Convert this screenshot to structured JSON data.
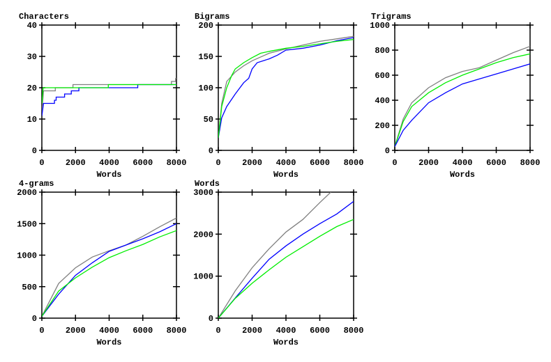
{
  "colors": {
    "gray": "#808080",
    "green": "#00ee00",
    "blue": "#0000ff"
  },
  "chart_data": [
    {
      "type": "line",
      "title": "Characters",
      "xlabel": "Words",
      "ylabel": "",
      "xlim": [
        0,
        8000
      ],
      "ylim": [
        0,
        40
      ],
      "xticks": [
        "0",
        "2000",
        "4000",
        "6000",
        "8000"
      ],
      "yticks": [
        "0",
        "10",
        "20",
        "30",
        "40"
      ],
      "grid": false,
      "series": [
        {
          "color": "gray",
          "x": [
            0,
            100,
            800,
            800,
            1850,
            1850,
            7700,
            7700,
            7950,
            7950,
            8000
          ],
          "y": [
            12,
            19,
            19,
            20,
            20,
            21,
            21,
            22,
            22,
            23,
            23
          ]
        },
        {
          "color": "blue",
          "x": [
            0,
            100,
            750,
            750,
            850,
            850,
            1350,
            1350,
            1750,
            1750,
            2200,
            2200,
            5700,
            5700,
            8000
          ],
          "y": [
            11,
            15,
            15,
            16,
            16,
            17,
            17,
            18,
            18,
            19,
            19,
            20,
            20,
            21,
            21
          ]
        },
        {
          "color": "green",
          "x": [
            0,
            80,
            3950,
            3950,
            8000
          ],
          "y": [
            15,
            20,
            20,
            21,
            21
          ]
        }
      ]
    },
    {
      "type": "line",
      "title": "Bigrams",
      "xlabel": "Words",
      "ylabel": "",
      "xlim": [
        0,
        8000
      ],
      "ylim": [
        0,
        200
      ],
      "xticks": [
        "0",
        "2000",
        "4000",
        "6000",
        "8000"
      ],
      "yticks": [
        "0",
        "50",
        "100",
        "150",
        "200"
      ],
      "grid": false,
      "series": [
        {
          "color": "gray",
          "x": [
            0,
            200,
            500,
            1000,
            1500,
            2000,
            3000,
            4000,
            5000,
            6000,
            7000,
            8000
          ],
          "y": [
            20,
            75,
            110,
            125,
            135,
            143,
            155,
            162,
            168,
            174,
            178,
            182
          ]
        },
        {
          "color": "blue",
          "x": [
            0,
            200,
            500,
            1000,
            1500,
            1800,
            2000,
            2300,
            3000,
            3500,
            4000,
            5000,
            6000,
            7000,
            8000
          ],
          "y": [
            20,
            52,
            70,
            90,
            108,
            115,
            130,
            140,
            146,
            152,
            160,
            163,
            168,
            175,
            180
          ]
        },
        {
          "color": "green",
          "x": [
            0,
            200,
            500,
            800,
            1000,
            1500,
            2000,
            2500,
            3000,
            4000,
            5000,
            6000,
            7000,
            8000
          ],
          "y": [
            20,
            70,
            100,
            120,
            130,
            140,
            148,
            155,
            158,
            163,
            166,
            170,
            174,
            177
          ]
        }
      ]
    },
    {
      "type": "line",
      "title": "Trigrams",
      "xlabel": "Words",
      "ylabel": "",
      "xlim": [
        0,
        8000
      ],
      "ylim": [
        0,
        1000
      ],
      "xticks": [
        "0",
        "2000",
        "4000",
        "6000",
        "8000"
      ],
      "yticks": [
        "0",
        "200",
        "400",
        "600",
        "800",
        "1000"
      ],
      "grid": false,
      "series": [
        {
          "color": "gray",
          "x": [
            0,
            500,
            1000,
            2000,
            3000,
            4000,
            5000,
            6000,
            7000,
            8000
          ],
          "y": [
            30,
            250,
            380,
            500,
            580,
            630,
            660,
            720,
            780,
            830
          ]
        },
        {
          "color": "green",
          "x": [
            0,
            500,
            1000,
            2000,
            3000,
            4000,
            5000,
            6000,
            7000,
            8000
          ],
          "y": [
            30,
            230,
            350,
            460,
            540,
            600,
            650,
            700,
            740,
            770
          ]
        },
        {
          "color": "blue",
          "x": [
            0,
            500,
            1000,
            2000,
            3000,
            4000,
            5000,
            6000,
            7000,
            8000
          ],
          "y": [
            30,
            160,
            240,
            380,
            460,
            530,
            570,
            610,
            650,
            690
          ]
        }
      ]
    },
    {
      "type": "line",
      "title": "4-grams",
      "xlabel": "Words",
      "ylabel": "",
      "xlim": [
        0,
        8000
      ],
      "ylim": [
        0,
        2000
      ],
      "xticks": [
        "0",
        "2000",
        "4000",
        "6000",
        "8000"
      ],
      "yticks": [
        "0",
        "500",
        "1000",
        "1500",
        "2000"
      ],
      "grid": false,
      "series": [
        {
          "color": "gray",
          "x": [
            0,
            1000,
            2000,
            3000,
            4000,
            5000,
            6000,
            7000,
            8000
          ],
          "y": [
            30,
            550,
            800,
            970,
            1070,
            1160,
            1300,
            1450,
            1590
          ]
        },
        {
          "color": "blue",
          "x": [
            0,
            1000,
            2000,
            3000,
            4000,
            5000,
            6000,
            7000,
            8000
          ],
          "y": [
            30,
            380,
            680,
            880,
            1060,
            1160,
            1260,
            1370,
            1500
          ]
        },
        {
          "color": "green",
          "x": [
            0,
            1000,
            2000,
            3000,
            4000,
            5000,
            6000,
            7000,
            8000
          ],
          "y": [
            30,
            430,
            640,
            810,
            960,
            1070,
            1170,
            1290,
            1390
          ]
        }
      ]
    },
    {
      "type": "line",
      "title": "Words",
      "xlabel": "Words",
      "ylabel": "",
      "xlim": [
        0,
        8000
      ],
      "ylim": [
        0,
        3000
      ],
      "xticks": [
        "0",
        "2000",
        "4000",
        "6000",
        "8000"
      ],
      "yticks": [
        "0",
        "1000",
        "2000",
        "3000"
      ],
      "grid": false,
      "series": [
        {
          "color": "gray",
          "x": [
            0,
            1000,
            2000,
            3000,
            4000,
            5000,
            6000,
            6650
          ],
          "y": [
            0,
            650,
            1200,
            1650,
            2050,
            2350,
            2750,
            3000
          ]
        },
        {
          "color": "blue",
          "x": [
            0,
            1000,
            2000,
            3000,
            4000,
            5000,
            6000,
            7000,
            8000
          ],
          "y": [
            0,
            480,
            950,
            1400,
            1720,
            2000,
            2250,
            2480,
            2780
          ]
        },
        {
          "color": "green",
          "x": [
            0,
            1000,
            2000,
            3000,
            4000,
            5000,
            6000,
            7000,
            8000
          ],
          "y": [
            0,
            470,
            830,
            1150,
            1450,
            1700,
            1950,
            2180,
            2350
          ]
        }
      ]
    }
  ]
}
